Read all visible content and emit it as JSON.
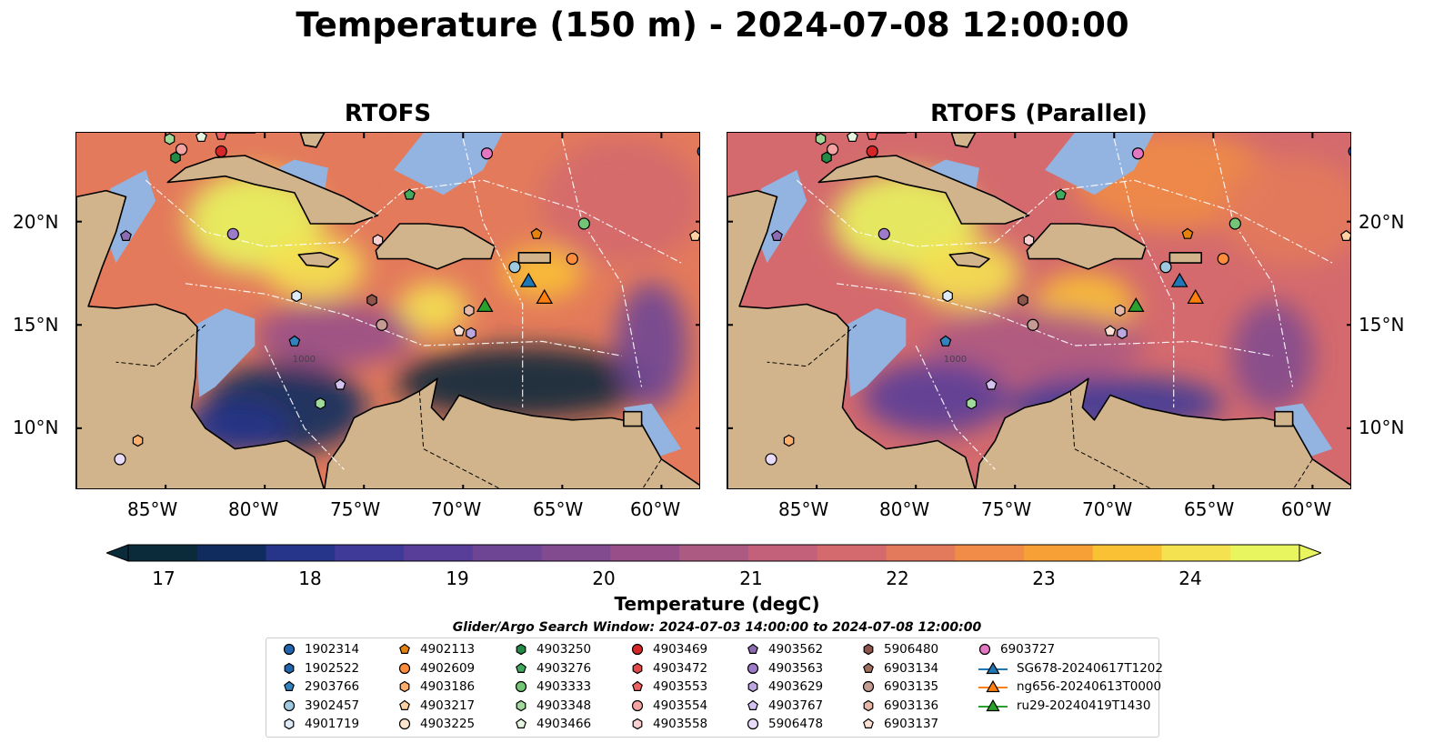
{
  "title": "Temperature (150 m) - 2024-07-08 12:00:00",
  "panels": [
    {
      "title": "RTOFS"
    },
    {
      "title": "RTOFS (Parallel)"
    }
  ],
  "axes": {
    "lon_ticks": [
      "85°W",
      "80°W",
      "75°W",
      "70°W",
      "65°W",
      "60°W"
    ],
    "lat_ticks": [
      "20°N",
      "15°N",
      "10°N"
    ],
    "lon_range": [
      -89.5,
      -58.0
    ],
    "lat_range": [
      7.0,
      24.3
    ],
    "bathymetry_contour_label": "1000"
  },
  "colorbar": {
    "label": "Temperature (degC)",
    "ticks": [
      "17",
      "18",
      "19",
      "20",
      "21",
      "22",
      "23",
      "24"
    ],
    "colors": [
      "#0b2a3a",
      "#102b5e",
      "#263489",
      "#3f3a97",
      "#593e99",
      "#6e4595",
      "#824a8f",
      "#984f89",
      "#ad5a82",
      "#c4617a",
      "#d46a6d",
      "#e37a5b",
      "#f08c47",
      "#f6a036",
      "#f9c133",
      "#f4e251",
      "#e8f55e"
    ]
  },
  "search_window": "Glider/Argo Search Window: 2024-07-03 14:00:00 to 2024-07-08 12:00:00",
  "legend": [
    {
      "label": "1902314",
      "marker": "circle",
      "color": "#2166ac"
    },
    {
      "label": "1902522",
      "marker": "hexagon",
      "color": "#2166ac"
    },
    {
      "label": "2903766",
      "marker": "pentagon",
      "color": "#3182bd"
    },
    {
      "label": "3902457",
      "marker": "circle",
      "color": "#9ecae1"
    },
    {
      "label": "4901719",
      "marker": "hexagon",
      "color": "#deebf7"
    },
    {
      "label": "4902113",
      "marker": "pentagon",
      "color": "#e6820e"
    },
    {
      "label": "4902609",
      "marker": "circle",
      "color": "#fd8d3c"
    },
    {
      "label": "4903186",
      "marker": "hexagon",
      "color": "#fdae6b"
    },
    {
      "label": "4903217",
      "marker": "pentagon",
      "color": "#fdd0a2"
    },
    {
      "label": "4903225",
      "marker": "circle",
      "color": "#fee6ce"
    },
    {
      "label": "4903250",
      "marker": "hexagon",
      "color": "#238b45"
    },
    {
      "label": "4903276",
      "marker": "pentagon",
      "color": "#41ab5d"
    },
    {
      "label": "4903333",
      "marker": "circle",
      "color": "#74c476"
    },
    {
      "label": "4903348",
      "marker": "hexagon",
      "color": "#a1d99b"
    },
    {
      "label": "4903466",
      "marker": "pentagon",
      "color": "#e5f5e0"
    },
    {
      "label": "4903469",
      "marker": "circle",
      "color": "#d62728"
    },
    {
      "label": "4903472",
      "marker": "hexagon",
      "color": "#e34a4a"
    },
    {
      "label": "4903553",
      "marker": "pentagon",
      "color": "#f06060"
    },
    {
      "label": "4903554",
      "marker": "circle",
      "color": "#f4a3a3"
    },
    {
      "label": "4903558",
      "marker": "hexagon",
      "color": "#fbd0d0"
    },
    {
      "label": "4903562",
      "marker": "pentagon",
      "color": "#8c6bb1"
    },
    {
      "label": "4903563",
      "marker": "circle",
      "color": "#9e7bc8"
    },
    {
      "label": "4903629",
      "marker": "hexagon",
      "color": "#bca7e0"
    },
    {
      "label": "4903767",
      "marker": "pentagon",
      "color": "#d4c2f0"
    },
    {
      "label": "5906478",
      "marker": "circle",
      "color": "#e8dcf8"
    },
    {
      "label": "5906480",
      "marker": "hexagon",
      "color": "#8c564b"
    },
    {
      "label": "6903134",
      "marker": "pentagon",
      "color": "#a0705f"
    },
    {
      "label": "6903135",
      "marker": "circle",
      "color": "#c49c94"
    },
    {
      "label": "6903136",
      "marker": "hexagon",
      "color": "#e6b8a8"
    },
    {
      "label": "6903137",
      "marker": "pentagon",
      "color": "#fde0d4"
    },
    {
      "label": "6903727",
      "marker": "circle",
      "color": "#e377c2"
    },
    {
      "label": "SG678-20240617T1202",
      "marker": "triangle",
      "color": "#1f77b4"
    },
    {
      "label": "ng656-20240613T0000",
      "marker": "triangle",
      "color": "#ff7f0e"
    },
    {
      "label": "ru29-20240419T1430",
      "marker": "triangle",
      "color": "#2ca02c"
    }
  ],
  "observations": [
    {
      "id": "1902314",
      "lon": -57.9,
      "lat": 23.4
    },
    {
      "id": "4903348",
      "lon": -84.8,
      "lat": 24.0
    },
    {
      "id": "4903466",
      "lon": -83.2,
      "lat": 24.1
    },
    {
      "id": "4903553",
      "lon": -82.2,
      "lat": 24.2
    },
    {
      "id": "4903554",
      "lon": -84.2,
      "lat": 23.5
    },
    {
      "id": "4903250",
      "lon": -84.5,
      "lat": 23.1
    },
    {
      "id": "4903469",
      "lon": -82.2,
      "lat": 23.4
    },
    {
      "id": "6903727",
      "lon": -68.8,
      "lat": 23.3
    },
    {
      "id": "4903276",
      "lon": -72.7,
      "lat": 21.3
    },
    {
      "id": "4903562",
      "lon": -87.0,
      "lat": 19.3
    },
    {
      "id": "4903563",
      "lon": -81.6,
      "lat": 19.4
    },
    {
      "id": "4903558",
      "lon": -74.3,
      "lat": 19.1
    },
    {
      "id": "4902113",
      "lon": -66.3,
      "lat": 19.4
    },
    {
      "id": "4903333",
      "lon": -63.9,
      "lat": 19.9
    },
    {
      "id": "4903217",
      "lon": -58.3,
      "lat": 19.3
    },
    {
      "id": "3902457",
      "lon": -67.4,
      "lat": 17.8
    },
    {
      "id": "4902609",
      "lon": -64.5,
      "lat": 18.2
    },
    {
      "id": "4901719",
      "lon": -78.4,
      "lat": 16.4
    },
    {
      "id": "5906480",
      "lon": -74.6,
      "lat": 16.2
    },
    {
      "id": "6903135",
      "lon": -74.1,
      "lat": 15.0
    },
    {
      "id": "6903136",
      "lon": -69.7,
      "lat": 15.7
    },
    {
      "id": "6903137",
      "lon": -70.2,
      "lat": 14.7
    },
    {
      "id": "4903629",
      "lon": -69.6,
      "lat": 14.6
    },
    {
      "id": "2903766",
      "lon": -78.5,
      "lat": 14.2
    },
    {
      "id": "4903767",
      "lon": -76.2,
      "lat": 12.1
    },
    {
      "id": "4903348",
      "lon": -77.2,
      "lat": 11.2
    },
    {
      "id": "4903186",
      "lon": -86.4,
      "lat": 9.4
    },
    {
      "id": "5906478",
      "lon": -87.3,
      "lat": 8.5
    },
    {
      "id": "SG678-20240617T1202",
      "lon": -66.7,
      "lat": 17.1
    },
    {
      "id": "ng656-20240613T0000",
      "lon": -65.9,
      "lat": 16.3
    },
    {
      "id": "ru29-20240419T1430",
      "lon": -68.9,
      "lat": 15.9
    }
  ]
}
